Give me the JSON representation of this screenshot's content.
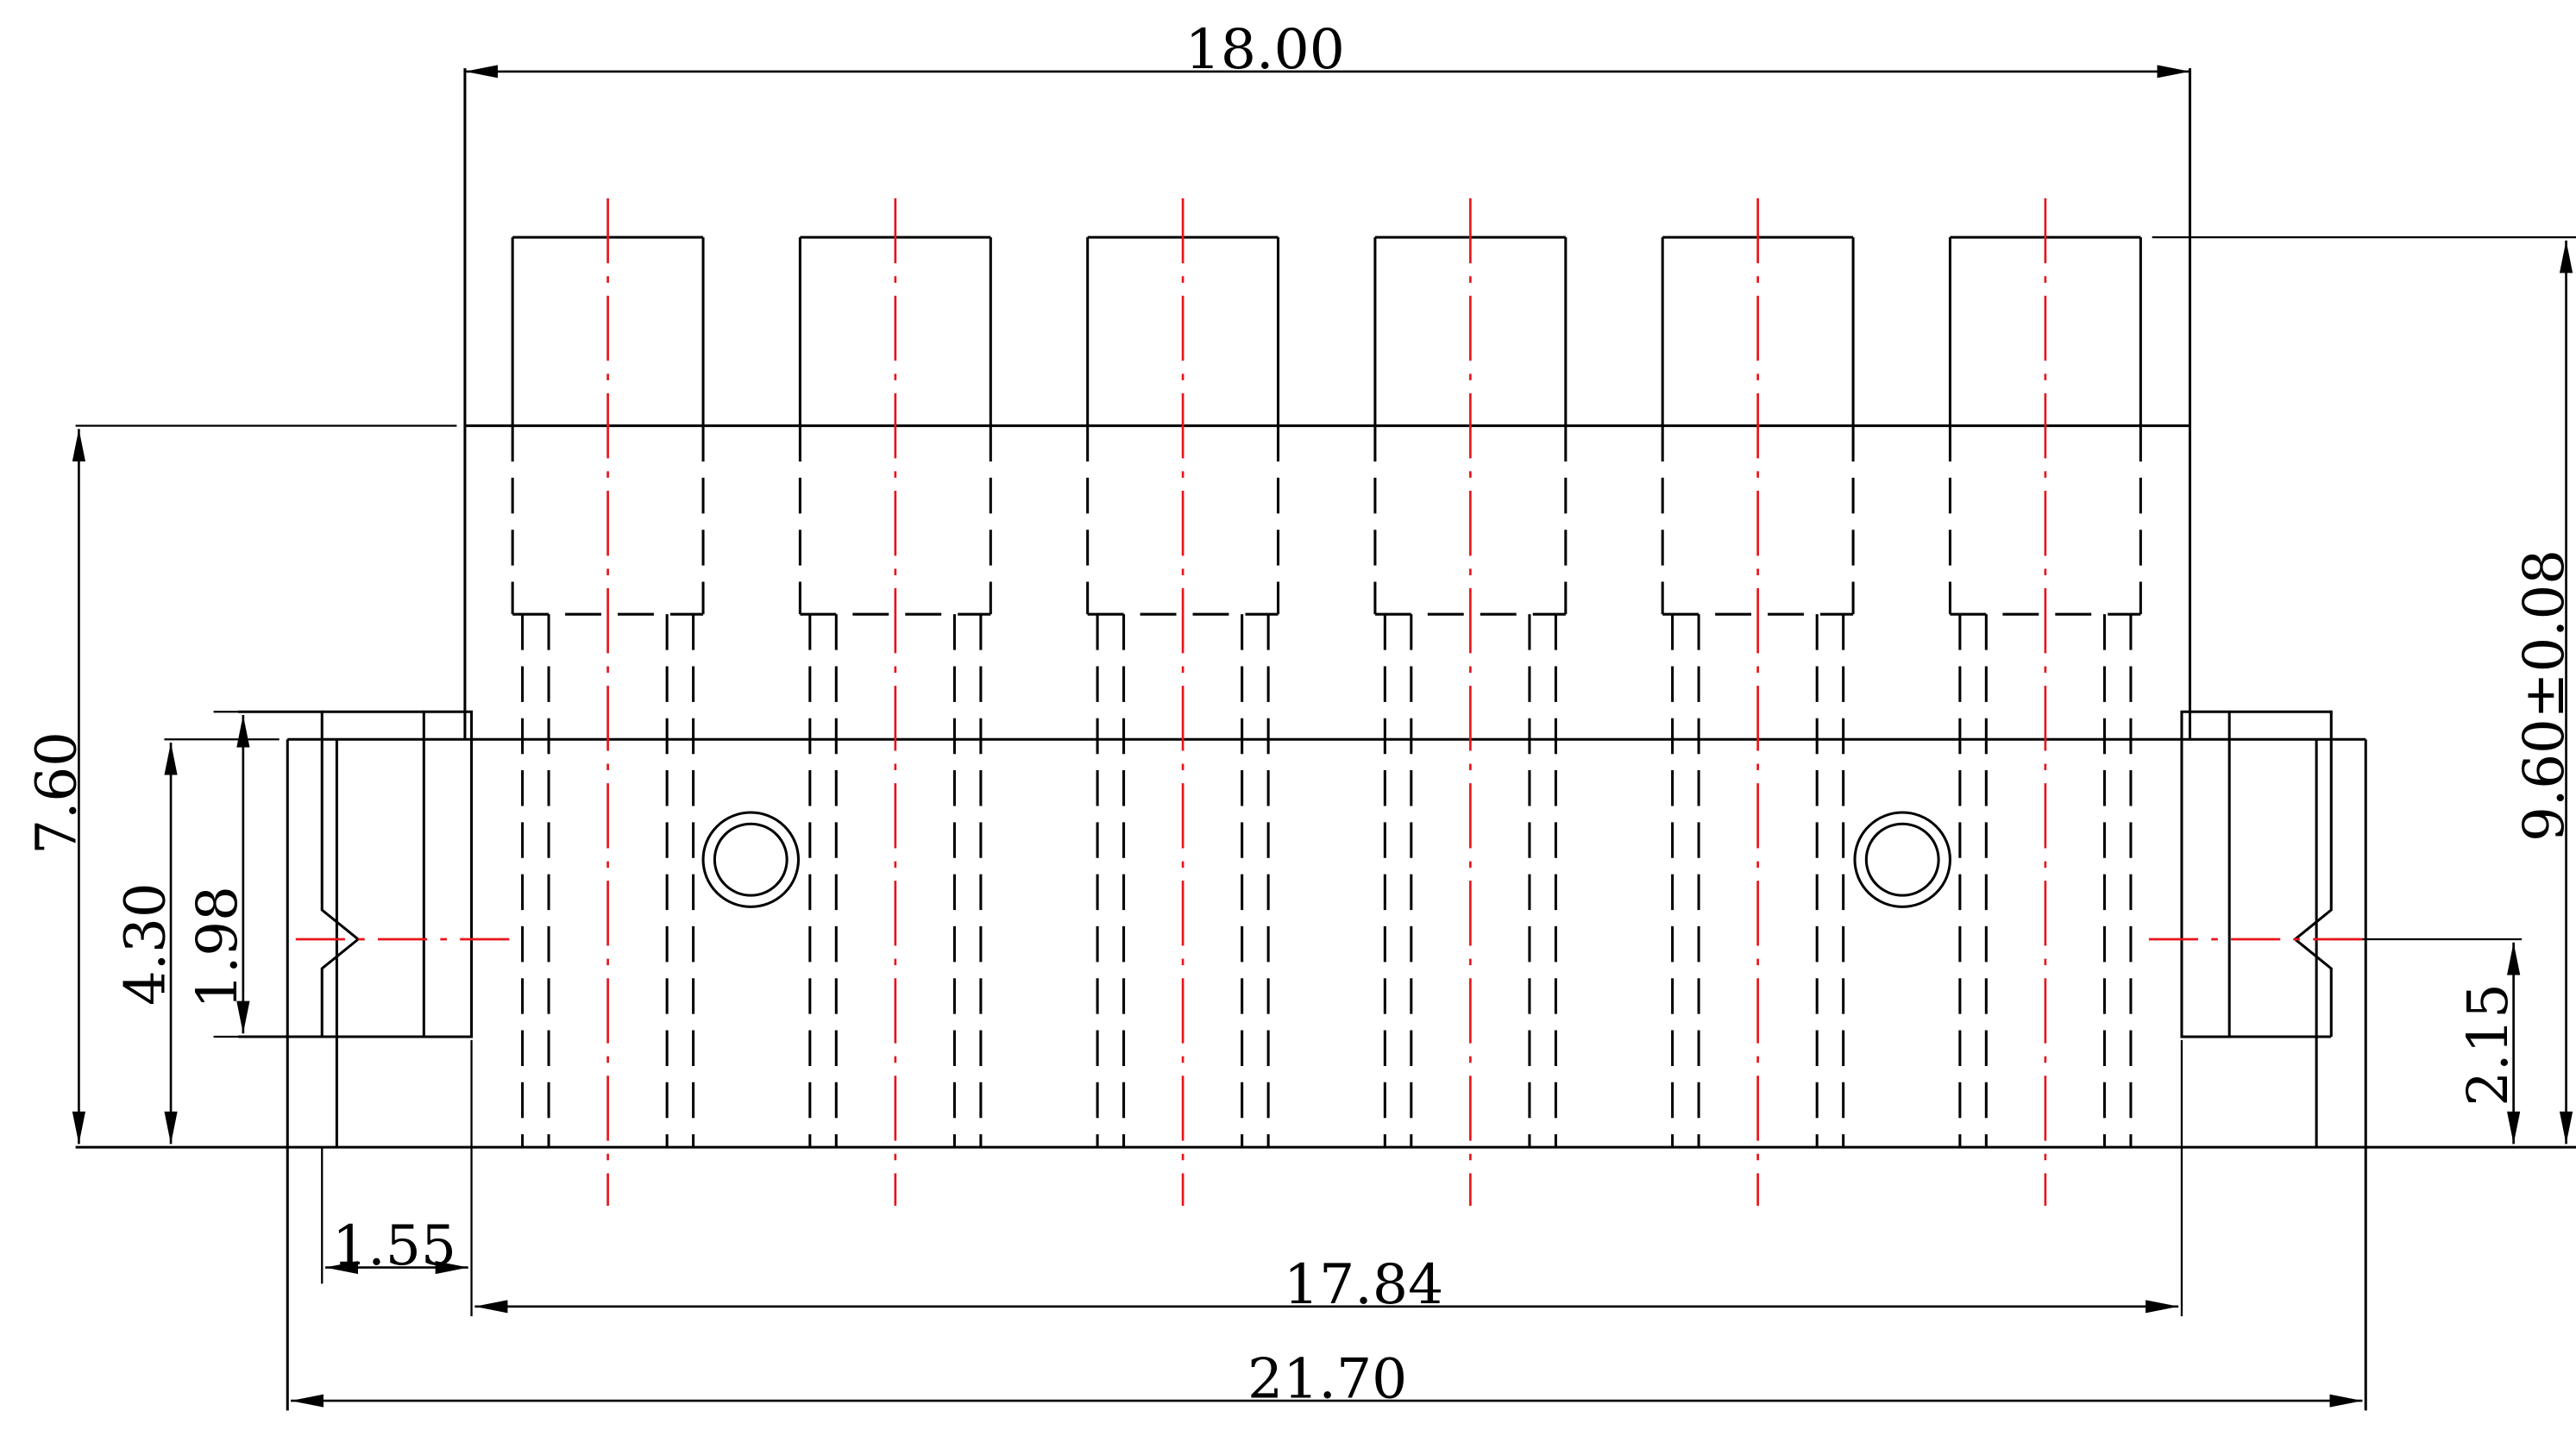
{
  "drawing": {
    "type": "technical-drawing",
    "subject": "6-position terminal block connector, front view",
    "units": "mm",
    "positions": 6,
    "line_color": "#000000",
    "centerline_color": "#e8141b",
    "background": "#ffffff"
  },
  "dimensions": {
    "top_width": "18.00",
    "overall_height": "9.60±0.08",
    "body_height": "7.60",
    "base_height": "4.30",
    "latch_height": "1.98",
    "latch_offset": "2.15",
    "latch_width": "1.55",
    "inner_span": "17.84",
    "overall_width": "21.70"
  }
}
